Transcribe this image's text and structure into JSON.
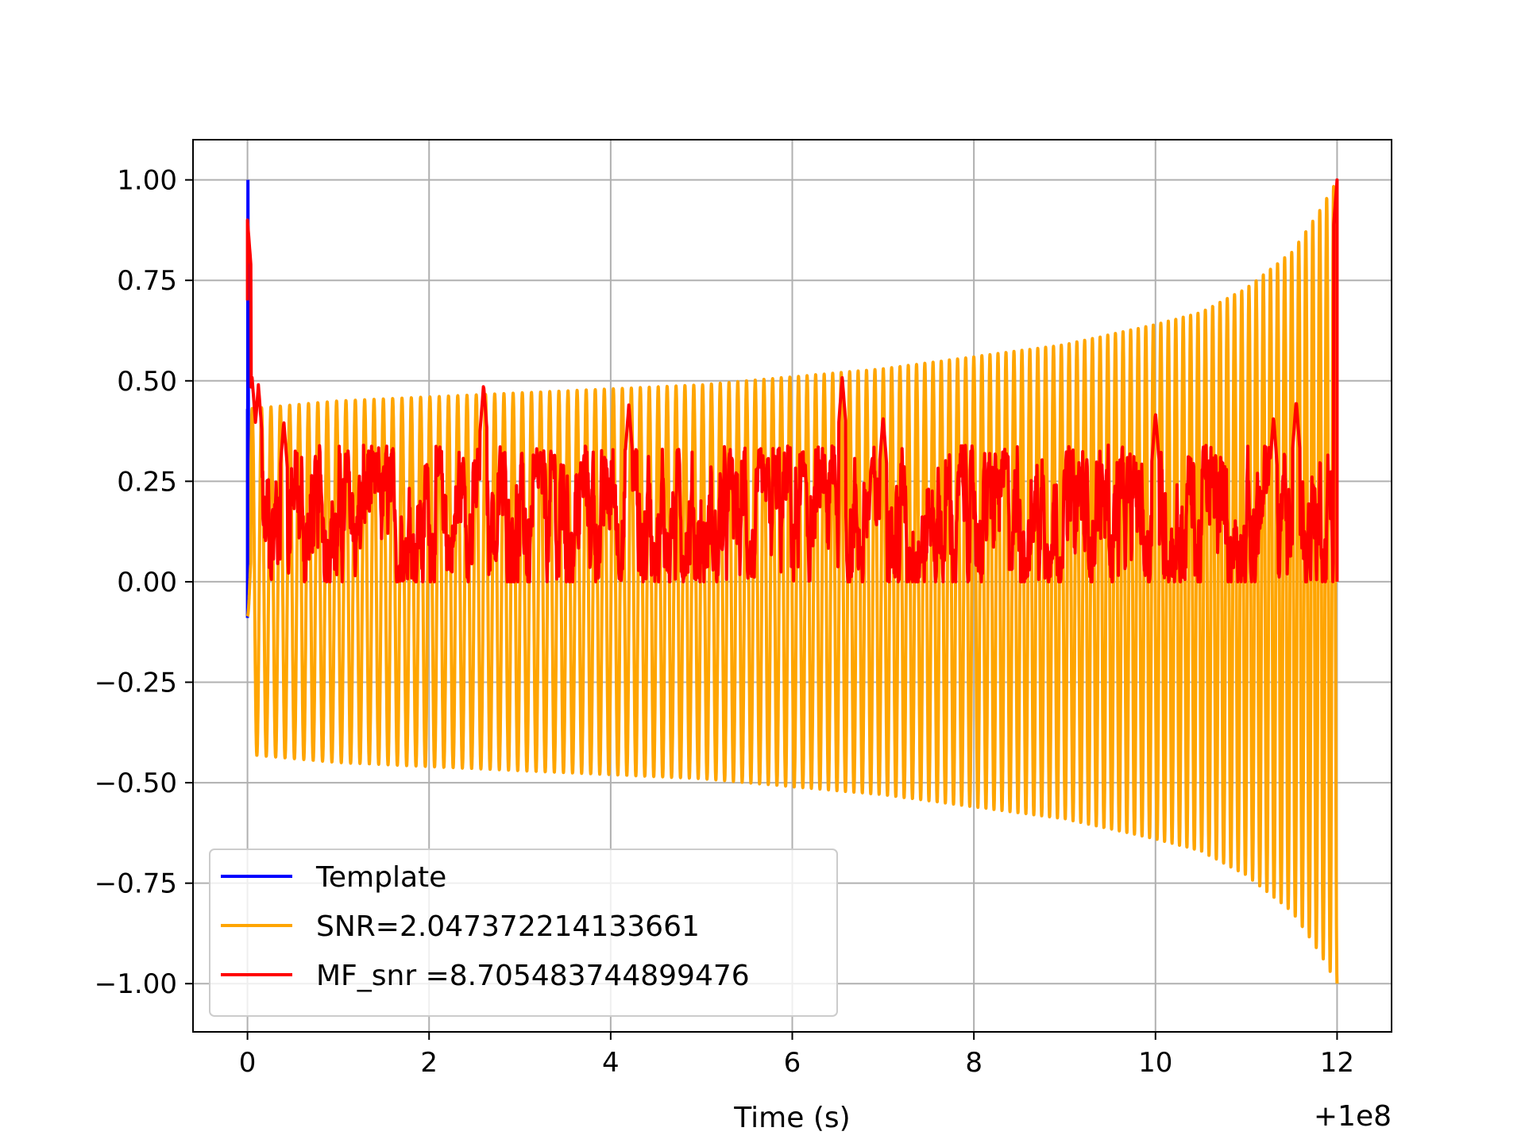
{
  "chart_data": {
    "type": "line",
    "title": "",
    "xlabel": "Time (s)",
    "ylabel": "",
    "x_offset_label": "+1e8",
    "xlim": [
      -0.6,
      12.6
    ],
    "ylim": [
      -1.12,
      1.1
    ],
    "xticks": [
      0,
      2,
      4,
      6,
      8,
      10,
      12
    ],
    "xtick_labels": [
      "0",
      "2",
      "4",
      "6",
      "8",
      "10",
      "12"
    ],
    "yticks": [
      1.0,
      0.75,
      0.5,
      0.25,
      0.0,
      -0.25,
      -0.5,
      -0.75,
      -1.0
    ],
    "ytick_labels": [
      "1.00",
      "0.75",
      "0.50",
      "0.25",
      "0.00",
      "−0.25",
      "−0.50",
      "−0.75",
      "−1.00"
    ],
    "grid": true,
    "legend_position": "lower-left",
    "series": [
      {
        "name": "Template",
        "color": "#0000ff",
        "kind": "spike",
        "points": [
          [
            0.0,
            0.43
          ],
          [
            0.0,
            -0.09
          ],
          [
            0.005,
            1.0
          ],
          [
            0.01,
            0.43
          ],
          [
            0.015,
            0.0
          ]
        ]
      },
      {
        "name": "SNR=2.047372214133661",
        "color": "#ffa500",
        "kind": "chirp",
        "t_start": 0.0,
        "t_end": 12.0,
        "cycles": 130,
        "envelope": [
          [
            0.0,
            0.43
          ],
          [
            1.0,
            0.45
          ],
          [
            2.0,
            0.46
          ],
          [
            3.0,
            0.47
          ],
          [
            4.0,
            0.48
          ],
          [
            5.0,
            0.49
          ],
          [
            6.0,
            0.51
          ],
          [
            7.0,
            0.53
          ],
          [
            8.0,
            0.56
          ],
          [
            9.0,
            0.59
          ],
          [
            10.0,
            0.64
          ],
          [
            10.5,
            0.67
          ],
          [
            11.0,
            0.73
          ],
          [
            11.5,
            0.82
          ],
          [
            11.8,
            0.92
          ],
          [
            12.0,
            1.0
          ]
        ]
      },
      {
        "name": "MF_snr =8.705483744899476",
        "color": "#ff0000",
        "kind": "noise",
        "baseline_range": [
          0.0,
          0.35
        ],
        "peaks": [
          [
            0.0,
            0.9
          ],
          [
            0.05,
            0.51
          ],
          [
            0.12,
            0.49
          ],
          [
            0.4,
            0.4
          ],
          [
            2.6,
            0.49
          ],
          [
            4.2,
            0.44
          ],
          [
            6.55,
            0.51
          ],
          [
            7.0,
            0.41
          ],
          [
            10.0,
            0.42
          ],
          [
            11.3,
            0.41
          ],
          [
            11.55,
            0.45
          ],
          [
            12.0,
            1.0
          ]
        ]
      }
    ]
  }
}
